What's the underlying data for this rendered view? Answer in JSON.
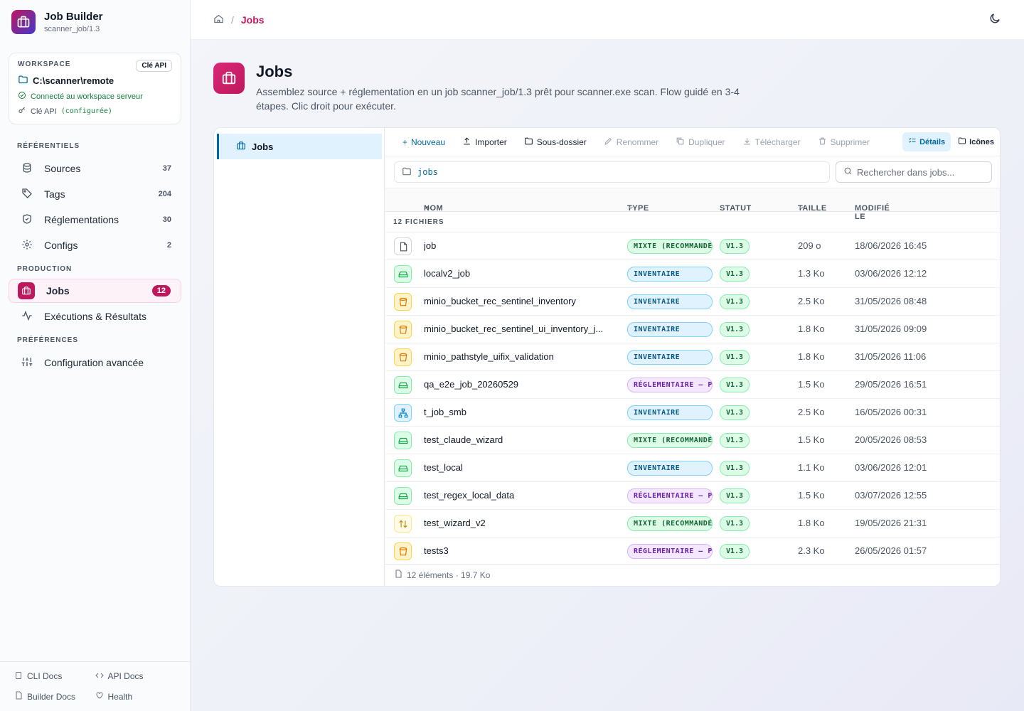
{
  "app": {
    "title": "Job Builder",
    "subtitle": "scanner_job/1.3"
  },
  "workspace": {
    "label": "WORKSPACE",
    "api_button": "Clé API",
    "path": "C:\\scanner\\remote",
    "status": "Connecté au workspace serveur",
    "key_label": "Clé API",
    "key_status": "(configurée)"
  },
  "nav": {
    "sec_ref": "RÉFÉRENTIELS",
    "sec_prod": "PRODUCTION",
    "sec_pref": "PRÉFÉRENCES",
    "sources": {
      "label": "Sources",
      "count": "37"
    },
    "tags": {
      "label": "Tags",
      "count": "204"
    },
    "reg": {
      "label": "Réglementations",
      "count": "30"
    },
    "configs": {
      "label": "Configs",
      "count": "2"
    },
    "jobs": {
      "label": "Jobs",
      "count": "12"
    },
    "exec": {
      "label": "Exécutions & Résultats"
    },
    "adv": {
      "label": "Configuration avancée"
    }
  },
  "footer": {
    "cli": "CLI Docs",
    "api": "API Docs",
    "builder": "Builder Docs",
    "health": "Health"
  },
  "breadcrumb": {
    "sep": "/",
    "current": "Jobs"
  },
  "page": {
    "title": "Jobs",
    "description": "Assemblez source + réglementation en un job scanner_job/1.3 prêt pour scanner.exe scan. Flow guidé en 3-4 étapes. Clic droit pour exécuter."
  },
  "tree": {
    "item": "Jobs"
  },
  "toolbar": {
    "new": "Nouveau",
    "import": "Importer",
    "subfolder": "Sous-dossier",
    "rename": "Renommer",
    "duplicate": "Dupliquer",
    "download": "Télécharger",
    "delete": "Supprimer",
    "details": "Détails",
    "icons": "Icônes"
  },
  "pathbar": {
    "path": "jobs"
  },
  "search": {
    "placeholder": "Rechercher dans jobs..."
  },
  "columns": {
    "name": "NOM",
    "type": "TYPE",
    "status": "STATUT",
    "size": "TAILLE",
    "modified": "MODIFIÉ LE"
  },
  "group_label": "12 FICHIERS",
  "files": [
    {
      "icon": "file-icon",
      "tone": "gray",
      "name": "job",
      "type": "MIXTE (RECOMMANDÉ)",
      "kind": "mixte",
      "version": "V1.3",
      "size": "209 o",
      "modified": "18/06/2026 16:45"
    },
    {
      "icon": "drive-icon",
      "tone": "green",
      "name": "localv2_job",
      "type": "INVENTAIRE",
      "kind": "inv",
      "version": "V1.3",
      "size": "1.3 Ko",
      "modified": "03/06/2026 12:12"
    },
    {
      "icon": "bucket-icon",
      "tone": "orange",
      "name": "minio_bucket_rec_sentinel_inventory",
      "type": "INVENTAIRE",
      "kind": "inv",
      "version": "V1.3",
      "size": "2.5 Ko",
      "modified": "31/05/2026 08:48"
    },
    {
      "icon": "bucket-icon",
      "tone": "orange",
      "name": "minio_bucket_rec_sentinel_ui_inventory_j...",
      "type": "INVENTAIRE",
      "kind": "inv",
      "version": "V1.3",
      "size": "1.8 Ko",
      "modified": "31/05/2026 09:09"
    },
    {
      "icon": "bucket-icon",
      "tone": "orange",
      "name": "minio_pathstyle_uifix_validation",
      "type": "INVENTAIRE",
      "kind": "inv",
      "version": "V1.3",
      "size": "1.8 Ko",
      "modified": "31/05/2026 11:06"
    },
    {
      "icon": "drive-icon",
      "tone": "green",
      "name": "qa_e2e_job_20260529",
      "type": "RÉGLEMENTAIRE — P",
      "kind": "reg",
      "version": "V1.3",
      "size": "1.5 Ko",
      "modified": "29/05/2026 16:51"
    },
    {
      "icon": "network-icon",
      "tone": "blue",
      "name": "t_job_smb",
      "type": "INVENTAIRE",
      "kind": "inv",
      "version": "V1.3",
      "size": "2.5 Ko",
      "modified": "16/05/2026 00:31"
    },
    {
      "icon": "drive-icon",
      "tone": "green",
      "name": "test_claude_wizard",
      "type": "MIXTE (RECOMMANDÉ)",
      "kind": "mixte",
      "version": "V1.3",
      "size": "1.5 Ko",
      "modified": "20/05/2026 08:53"
    },
    {
      "icon": "drive-icon",
      "tone": "green",
      "name": "test_local",
      "type": "INVENTAIRE",
      "kind": "inv",
      "version": "V1.3",
      "size": "1.1 Ko",
      "modified": "03/06/2026 12:01"
    },
    {
      "icon": "drive-icon",
      "tone": "green",
      "name": "test_regex_local_data",
      "type": "RÉGLEMENTAIRE — P",
      "kind": "reg",
      "version": "V1.3",
      "size": "1.5 Ko",
      "modified": "03/07/2026 12:55"
    },
    {
      "icon": "transfer-icon",
      "tone": "yellow",
      "name": "test_wizard_v2",
      "type": "MIXTE (RECOMMANDÉ)",
      "kind": "mixte",
      "version": "V1.3",
      "size": "1.8 Ko",
      "modified": "19/05/2026 21:31"
    },
    {
      "icon": "bucket-icon",
      "tone": "orange",
      "name": "tests3",
      "type": "RÉGLEMENTAIRE — P",
      "kind": "reg",
      "version": "V1.3",
      "size": "2.3 Ko",
      "modified": "26/05/2026 01:57"
    }
  ],
  "panel_footer": "12 éléments · 19.7 Ko"
}
